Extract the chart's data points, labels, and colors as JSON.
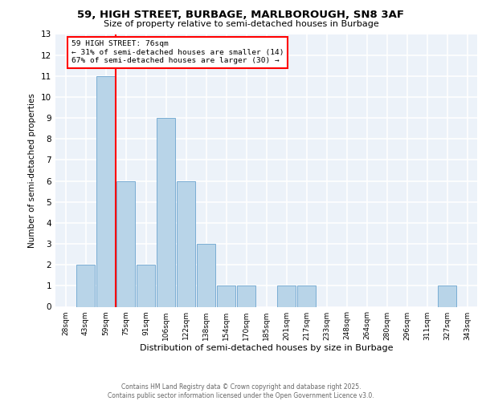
{
  "title_line1": "59, HIGH STREET, BURBAGE, MARLBOROUGH, SN8 3AF",
  "title_line2": "Size of property relative to semi-detached houses in Burbage",
  "xlabel": "Distribution of semi-detached houses by size in Burbage",
  "ylabel": "Number of semi-detached properties",
  "categories": [
    "28sqm",
    "43sqm",
    "59sqm",
    "75sqm",
    "91sqm",
    "106sqm",
    "122sqm",
    "138sqm",
    "154sqm",
    "170sqm",
    "185sqm",
    "201sqm",
    "217sqm",
    "233sqm",
    "248sqm",
    "264sqm",
    "280sqm",
    "296sqm",
    "311sqm",
    "327sqm",
    "343sqm"
  ],
  "values": [
    0,
    2,
    11,
    6,
    2,
    9,
    6,
    3,
    1,
    1,
    0,
    1,
    1,
    0,
    0,
    0,
    0,
    0,
    0,
    1,
    0
  ],
  "bar_color": "#b8d4e8",
  "bar_edge_color": "#7aadd4",
  "red_line_index": 2.5,
  "annotation_title": "59 HIGH STREET: 76sqm",
  "annotation_line1": "← 31% of semi-detached houses are smaller (14)",
  "annotation_line2": "67% of semi-detached houses are larger (30) →",
  "ylim": [
    0,
    13
  ],
  "yticks": [
    0,
    1,
    2,
    3,
    4,
    5,
    6,
    7,
    8,
    9,
    10,
    11,
    12,
    13
  ],
  "background_color": "#ecf2f9",
  "grid_color": "white",
  "footer_line1": "Contains HM Land Registry data © Crown copyright and database right 2025.",
  "footer_line2": "Contains public sector information licensed under the Open Government Licence v3.0."
}
